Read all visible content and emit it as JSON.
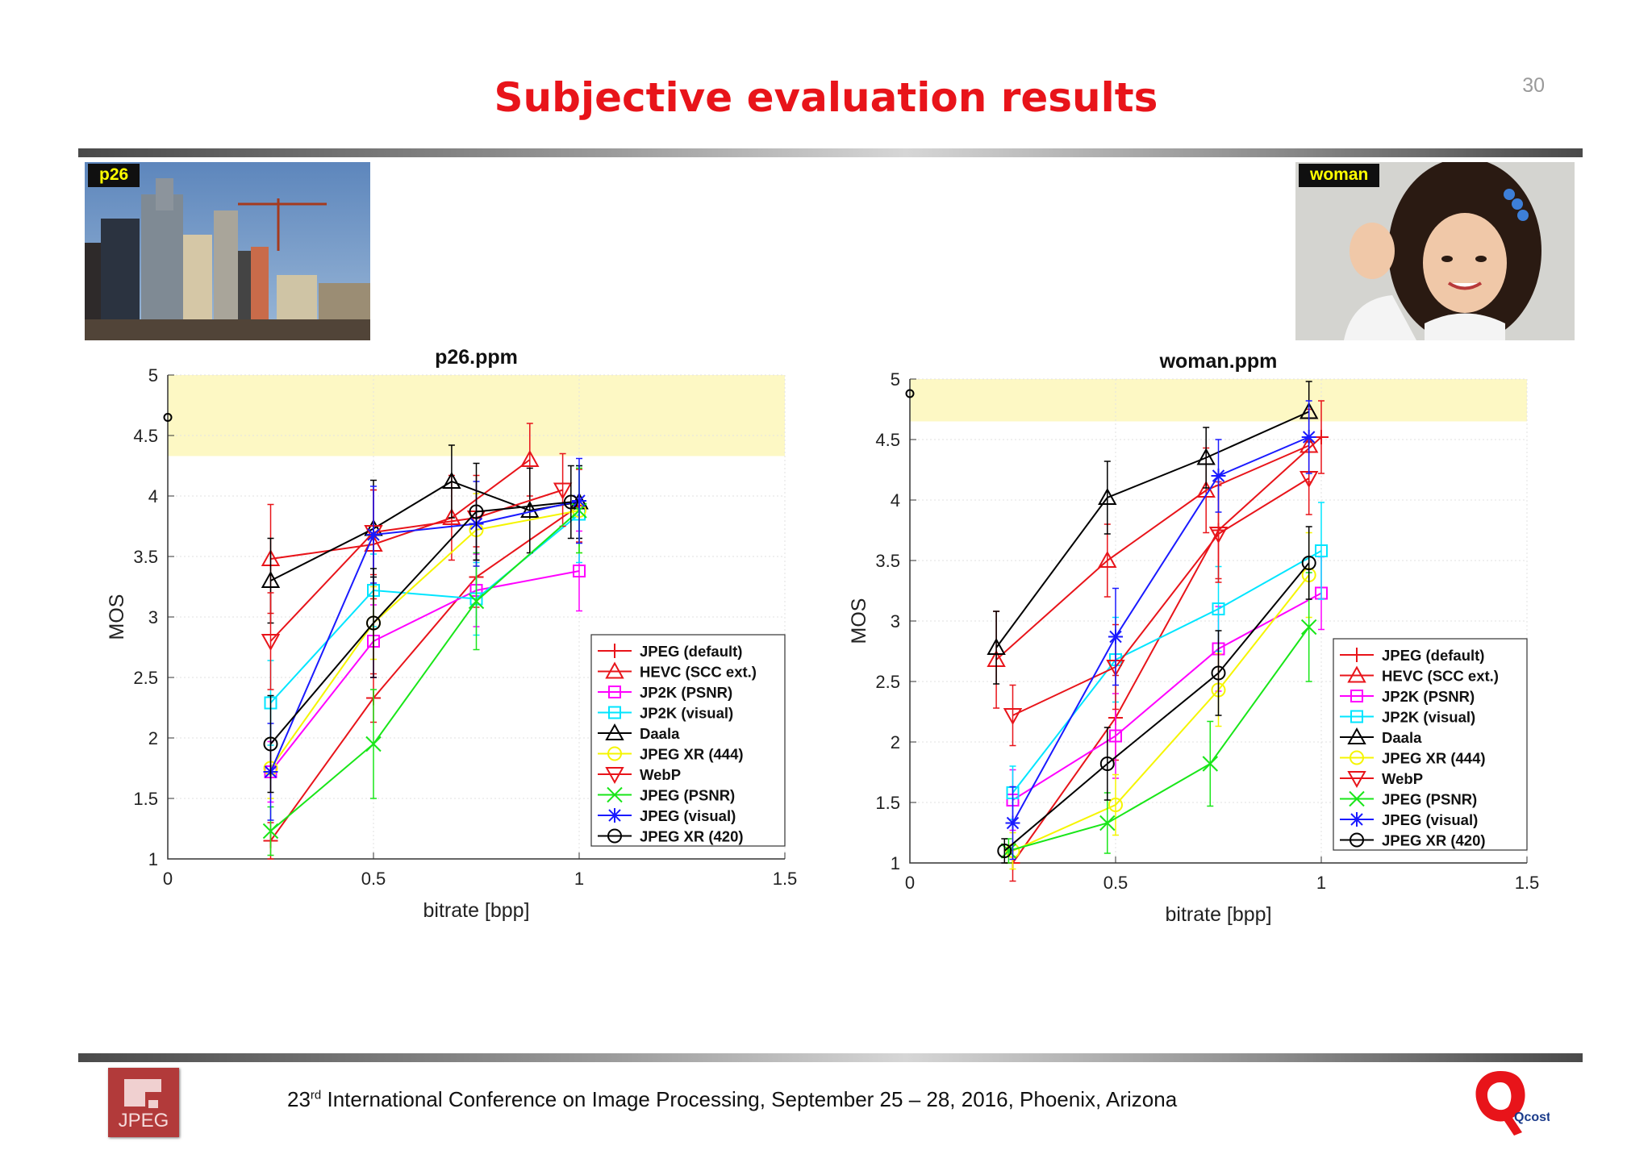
{
  "slide": {
    "title": "Subjective evaluation results",
    "page_number": "30",
    "footer_prefix": "23",
    "footer_sup": "rd",
    "footer_rest": " International Conference on Image Processing, September 25 – 28, 2016, Phoenix, Arizona",
    "jpeg_logo_text": "JPEG",
    "qcost_logo_text": "Qcost",
    "photo_left_tag": "p26",
    "photo_right_tag": "woman"
  },
  "colors": {
    "title": "#e8141a",
    "band": "#fdf8c4"
  },
  "legend": [
    {
      "name": "JPEG (default)",
      "color": "#e8141a",
      "marker": "plus"
    },
    {
      "name": "HEVC (SCC ext.)",
      "color": "#e8141a",
      "marker": "triangle-up"
    },
    {
      "name": "JP2K (PSNR)",
      "color": "#ff00ff",
      "marker": "square"
    },
    {
      "name": "JP2K (visual)",
      "color": "#00e5ff",
      "marker": "square"
    },
    {
      "name": "Daala",
      "color": "#000000",
      "marker": "triangle-up"
    },
    {
      "name": "JPEG XR (444)",
      "color": "#f5f500",
      "marker": "circle"
    },
    {
      "name": "WebP",
      "color": "#e8141a",
      "marker": "triangle-down"
    },
    {
      "name": "JPEG (PSNR)",
      "color": "#19e619",
      "marker": "x"
    },
    {
      "name": "JPEG (visual)",
      "color": "#1a1aff",
      "marker": "star"
    },
    {
      "name": "JPEG XR (420)",
      "color": "#000000",
      "marker": "circle"
    }
  ],
  "chart_data": [
    {
      "type": "line",
      "title": "p26.ppm",
      "xlabel": "bitrate [bpp]",
      "ylabel": "MOS",
      "xlim": [
        0,
        1.5
      ],
      "ylim": [
        1,
        5
      ],
      "xticks": [
        "0",
        "0.5",
        "1",
        "1.5"
      ],
      "yticks": [
        "1",
        "1.5",
        "2",
        "2.5",
        "3",
        "3.5",
        "4",
        "4.5",
        "5"
      ],
      "band": [
        4.33,
        5
      ],
      "reference": {
        "x": 0,
        "y": 4.65
      },
      "legend_position": "bottom-right",
      "series": [
        {
          "name": "JPEG (default)",
          "x": [
            0.25,
            0.5,
            0.75,
            1.0
          ],
          "y": [
            1.15,
            2.33,
            3.33,
            3.92
          ],
          "err": [
            0.15,
            0.2,
            0.25,
            0.3
          ]
        },
        {
          "name": "HEVC (SCC ext.)",
          "x": [
            0.25,
            0.5,
            0.69,
            0.88
          ],
          "y": [
            3.48,
            3.6,
            3.82,
            4.3
          ],
          "err": [
            0.45,
            0.45,
            0.35,
            0.3
          ]
        },
        {
          "name": "JP2K (PSNR)",
          "x": [
            0.25,
            0.5,
            0.75,
            1.0
          ],
          "y": [
            1.72,
            2.8,
            3.22,
            3.38
          ],
          "err": [
            0.25,
            0.3,
            0.3,
            0.33
          ]
        },
        {
          "name": "JP2K (visual)",
          "x": [
            0.25,
            0.5,
            0.75,
            1.0
          ],
          "y": [
            2.29,
            3.22,
            3.15,
            3.85
          ],
          "err": [
            0.35,
            0.3,
            0.3,
            0.4
          ]
        },
        {
          "name": "Daala",
          "x": [
            0.25,
            0.5,
            0.69,
            0.88,
            1.0
          ],
          "y": [
            3.3,
            3.73,
            4.12,
            3.88,
            3.95
          ],
          "err": [
            0.35,
            0.4,
            0.3,
            0.35,
            0.3
          ]
        },
        {
          "name": "JPEG XR (444)",
          "x": [
            0.25,
            0.5,
            0.75,
            1.0
          ],
          "y": [
            1.75,
            2.95,
            3.72,
            3.88
          ],
          "err": [
            0.25,
            0.3,
            0.3,
            0.35
          ]
        },
        {
          "name": "WebP",
          "x": [
            0.25,
            0.5,
            0.75,
            0.96
          ],
          "y": [
            2.8,
            3.7,
            3.82,
            4.05
          ],
          "err": [
            0.4,
            0.35,
            0.35,
            0.3
          ]
        },
        {
          "name": "JPEG (PSNR)",
          "x": [
            0.25,
            0.5,
            0.75,
            1.0
          ],
          "y": [
            1.23,
            1.95,
            3.13,
            3.88
          ],
          "err": [
            0.2,
            0.45,
            0.4,
            0.35
          ]
        },
        {
          "name": "JPEG (visual)",
          "x": [
            0.25,
            0.5,
            0.75,
            1.0
          ],
          "y": [
            1.72,
            3.68,
            3.77,
            3.96
          ],
          "err": [
            0.4,
            0.4,
            0.35,
            0.35
          ]
        },
        {
          "name": "JPEG XR (420)",
          "x": [
            0.25,
            0.5,
            0.75,
            0.98
          ],
          "y": [
            1.95,
            2.95,
            3.87,
            3.95
          ],
          "err": [
            0.4,
            0.45,
            0.4,
            0.3
          ]
        }
      ]
    },
    {
      "type": "line",
      "title": "woman.ppm",
      "xlabel": "bitrate [bpp]",
      "ylabel": "MOS",
      "xlim": [
        0,
        1.5
      ],
      "ylim": [
        1,
        5
      ],
      "xticks": [
        "0",
        "0.5",
        "1",
        "1.5"
      ],
      "yticks": [
        "1",
        "1.5",
        "2",
        "2.5",
        "3",
        "3.5",
        "4",
        "4.5",
        "5"
      ],
      "band": [
        4.65,
        5
      ],
      "reference": {
        "x": 0,
        "y": 4.88
      },
      "legend_position": "bottom-right",
      "series": [
        {
          "name": "JPEG (default)",
          "x": [
            0.25,
            0.5,
            0.75,
            1.0
          ],
          "y": [
            1.0,
            2.2,
            3.75,
            4.52
          ],
          "err": [
            0.15,
            0.35,
            0.4,
            0.3
          ]
        },
        {
          "name": "HEVC (SCC ext.)",
          "x": [
            0.21,
            0.48,
            0.72,
            0.97
          ],
          "y": [
            2.68,
            3.5,
            4.08,
            4.45
          ],
          "err": [
            0.4,
            0.3,
            0.35,
            0.3
          ]
        },
        {
          "name": "JP2K (PSNR)",
          "x": [
            0.25,
            0.5,
            0.75,
            1.0
          ],
          "y": [
            1.52,
            2.05,
            2.77,
            3.23
          ],
          "err": [
            0.25,
            0.35,
            0.35,
            0.3
          ]
        },
        {
          "name": "JP2K (visual)",
          "x": [
            0.25,
            0.5,
            0.75,
            1.0
          ],
          "y": [
            1.58,
            2.68,
            3.1,
            3.58
          ],
          "err": [
            0.22,
            0.35,
            0.35,
            0.4
          ]
        },
        {
          "name": "Daala",
          "x": [
            0.21,
            0.48,
            0.72,
            0.97
          ],
          "y": [
            2.78,
            4.02,
            4.35,
            4.73
          ],
          "err": [
            0.3,
            0.3,
            0.25,
            0.25
          ]
        },
        {
          "name": "JPEG XR (444)",
          "x": [
            0.25,
            0.5,
            0.75,
            0.97
          ],
          "y": [
            1.1,
            1.48,
            2.43,
            3.38
          ],
          "err": [
            0.15,
            0.25,
            0.3,
            0.35
          ]
        },
        {
          "name": "WebP",
          "x": [
            0.25,
            0.5,
            0.75,
            0.97
          ],
          "y": [
            2.22,
            2.62,
            3.72,
            4.18
          ],
          "err": [
            0.25,
            0.35,
            0.4,
            0.3
          ]
        },
        {
          "name": "JPEG (PSNR)",
          "x": [
            0.24,
            0.48,
            0.73,
            0.97
          ],
          "y": [
            1.1,
            1.33,
            1.82,
            2.95
          ],
          "err": [
            0.1,
            0.25,
            0.35,
            0.45
          ]
        },
        {
          "name": "JPEG (visual)",
          "x": [
            0.25,
            0.5,
            0.75,
            0.97
          ],
          "y": [
            1.33,
            2.87,
            4.2,
            4.52
          ],
          "err": [
            0.3,
            0.4,
            0.3,
            0.3
          ]
        },
        {
          "name": "JPEG XR (420)",
          "x": [
            0.23,
            0.48,
            0.75,
            0.97
          ],
          "y": [
            1.1,
            1.82,
            2.57,
            3.48
          ],
          "err": [
            0.1,
            0.3,
            0.35,
            0.3
          ]
        }
      ]
    }
  ]
}
